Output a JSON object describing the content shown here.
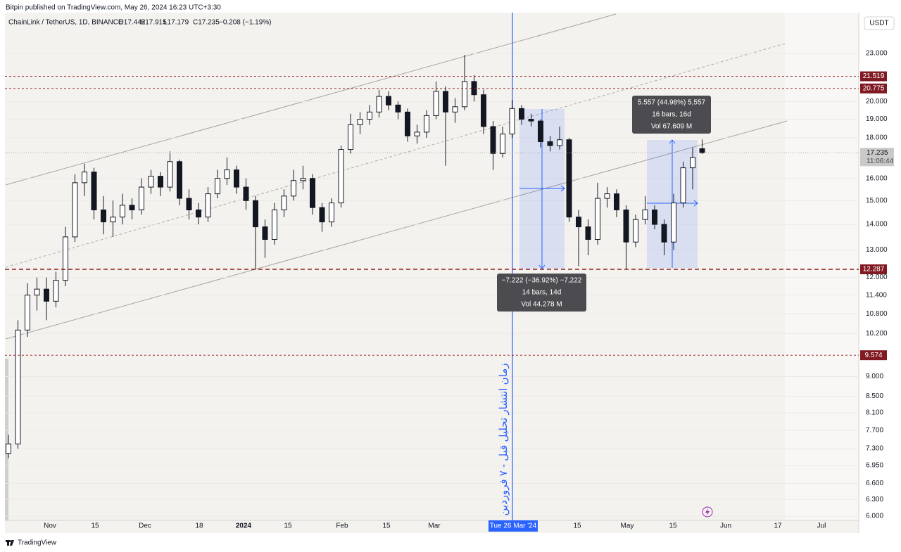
{
  "header": {
    "publisher": "Bitpin published on TradingView.com, May 26, 2024 16:23 UTC+3:30"
  },
  "legend": {
    "symbol": "ChainLink / TetherUS, 1D, BINANCE",
    "open": "O17.442",
    "high": "H17.915",
    "low": "L17.179",
    "close": "C17.235",
    "change": "−0.208 (−1.19%)"
  },
  "currency": "USDT",
  "price_axis": {
    "scale": "log",
    "range": [
      5.927,
      25.89
    ],
    "ticks": [
      {
        "value": 23,
        "label": "23.000"
      },
      {
        "value": 20,
        "label": "20.000"
      },
      {
        "value": 19,
        "label": "19.000"
      },
      {
        "value": 18,
        "label": "18.000"
      },
      {
        "value": 16,
        "label": "16.000"
      },
      {
        "value": 15,
        "label": "15.000"
      },
      {
        "value": 14,
        "label": "14.000"
      },
      {
        "value": 13,
        "label": "13.000"
      },
      {
        "value": 12,
        "label": "12.000"
      },
      {
        "value": 11.4,
        "label": "11.400"
      },
      {
        "value": 10.8,
        "label": "10.800"
      },
      {
        "value": 10.2,
        "label": "10.200"
      },
      {
        "value": 9,
        "label": "9.000"
      },
      {
        "value": 8.5,
        "label": "8.500"
      },
      {
        "value": 8.1,
        "label": "8.100"
      },
      {
        "value": 7.7,
        "label": "7.700"
      },
      {
        "value": 7.3,
        "label": "7.300"
      },
      {
        "value": 6.95,
        "label": "6.950"
      },
      {
        "value": 6.6,
        "label": "6.600"
      },
      {
        "value": 6.3,
        "label": "6.300"
      },
      {
        "value": 6,
        "label": "6.000"
      }
    ]
  },
  "time_axis": {
    "labels": [
      "Nov",
      "15",
      "Dec",
      "18",
      "2024",
      "15",
      "Feb",
      "15",
      "Mar",
      "15",
      "May",
      "15",
      "Jun",
      "17",
      "Jul"
    ],
    "crosshair_label": "Tue 26 Mar '24"
  },
  "price_lines": [
    21.519,
    20.775,
    12.287,
    9.574
  ],
  "current_price": {
    "value": 17.235,
    "countdown": "11:06:44"
  },
  "candles": [
    [
      7.2,
      7.6,
      7.1,
      7.4
    ],
    [
      7.4,
      10.6,
      7.3,
      10.3
    ],
    [
      10.3,
      11.8,
      10.1,
      11.4
    ],
    [
      11.4,
      12.0,
      10.9,
      11.6
    ],
    [
      11.6,
      12.0,
      10.6,
      11.2
    ],
    [
      11.2,
      12.2,
      11.0,
      11.9
    ],
    [
      11.9,
      13.9,
      11.7,
      13.5
    ],
    [
      13.5,
      16.2,
      13.3,
      15.8
    ],
    [
      15.8,
      16.7,
      15.2,
      16.3
    ],
    [
      16.3,
      16.5,
      14.2,
      14.6
    ],
    [
      14.6,
      15.2,
      13.6,
      14.1
    ],
    [
      14.1,
      15.0,
      13.5,
      14.3
    ],
    [
      14.3,
      15.3,
      14.0,
      14.8
    ],
    [
      14.8,
      15.1,
      14.2,
      14.6
    ],
    [
      14.6,
      16.0,
      14.4,
      15.6
    ],
    [
      15.6,
      16.4,
      15.3,
      16.1
    ],
    [
      16.1,
      16.3,
      15.2,
      15.6
    ],
    [
      15.6,
      17.3,
      15.4,
      16.8
    ],
    [
      16.8,
      16.9,
      14.8,
      15.1
    ],
    [
      15.1,
      15.5,
      14.2,
      14.6
    ],
    [
      14.6,
      14.9,
      14.0,
      14.3
    ],
    [
      14.3,
      15.6,
      14.1,
      15.3
    ],
    [
      15.3,
      16.4,
      15.1,
      16.0
    ],
    [
      16.0,
      17.0,
      15.7,
      16.4
    ],
    [
      16.4,
      16.6,
      15.3,
      15.6
    ],
    [
      15.6,
      16.0,
      14.6,
      15.0
    ],
    [
      15.0,
      15.2,
      12.3,
      13.9
    ],
    [
      13.9,
      14.2,
      12.7,
      13.4
    ],
    [
      13.4,
      14.9,
      13.2,
      14.6
    ],
    [
      14.6,
      15.5,
      14.3,
      15.2
    ],
    [
      15.2,
      16.4,
      15.0,
      15.9
    ],
    [
      15.9,
      16.6,
      15.5,
      16.0
    ],
    [
      16.0,
      16.2,
      14.4,
      14.7
    ],
    [
      14.7,
      14.9,
      13.7,
      14.1
    ],
    [
      14.1,
      15.1,
      13.9,
      14.9
    ],
    [
      14.9,
      17.6,
      14.7,
      17.4
    ],
    [
      17.4,
      19.3,
      17.2,
      18.7
    ],
    [
      18.7,
      19.4,
      18.2,
      19.0
    ],
    [
      19.0,
      19.8,
      18.7,
      19.4
    ],
    [
      19.4,
      20.7,
      19.1,
      20.3
    ],
    [
      20.3,
      20.6,
      19.5,
      19.8
    ],
    [
      19.8,
      20.0,
      19.0,
      19.4
    ],
    [
      19.4,
      19.6,
      17.8,
      18.1
    ],
    [
      18.1,
      18.7,
      17.7,
      18.3
    ],
    [
      18.3,
      19.5,
      18.0,
      19.2
    ],
    [
      19.2,
      21.2,
      19.0,
      20.6
    ],
    [
      20.6,
      20.9,
      16.6,
      19.4
    ],
    [
      19.4,
      20.2,
      18.8,
      19.7
    ],
    [
      19.7,
      22.9,
      19.5,
      21.2
    ],
    [
      21.2,
      21.6,
      20.0,
      20.4
    ],
    [
      20.4,
      20.7,
      18.2,
      18.6
    ],
    [
      18.6,
      18.9,
      16.4,
      17.2
    ],
    [
      17.2,
      18.6,
      17.0,
      18.2
    ],
    [
      18.2,
      20.1,
      18.0,
      19.6
    ],
    [
      19.6,
      19.8,
      18.7,
      19.0
    ],
    [
      19.0,
      19.3,
      18.6,
      18.9
    ],
    [
      18.9,
      19.0,
      17.5,
      17.8
    ],
    [
      17.8,
      18.1,
      17.3,
      17.6
    ],
    [
      17.6,
      18.6,
      17.4,
      17.9
    ],
    [
      17.9,
      18.0,
      14.1,
      14.3
    ],
    [
      14.3,
      14.6,
      12.4,
      13.9
    ],
    [
      13.9,
      14.2,
      12.8,
      13.4
    ],
    [
      13.4,
      15.8,
      13.2,
      15.1
    ],
    [
      15.1,
      15.6,
      14.7,
      15.3
    ],
    [
      15.3,
      15.5,
      14.3,
      14.6
    ],
    [
      14.6,
      14.8,
      12.3,
      13.3
    ],
    [
      13.3,
      14.4,
      13.1,
      14.2
    ],
    [
      14.2,
      15.2,
      14.0,
      14.6
    ],
    [
      14.6,
      14.8,
      13.8,
      14.0
    ],
    [
      14.0,
      14.2,
      12.8,
      13.3
    ],
    [
      13.3,
      15.3,
      13.0,
      14.9
    ],
    [
      14.9,
      16.8,
      14.7,
      16.5
    ],
    [
      16.5,
      17.5,
      15.5,
      17.0
    ],
    [
      17.442,
      17.915,
      17.179,
      17.235
    ]
  ],
  "measures": [
    {
      "lines": [
        "−7.222 (−36.92%) −7,222",
        "14 bars, 14d",
        "Vol 44.278 M"
      ]
    },
    {
      "lines": [
        "5.557 (44.98%) 5,557",
        "16 bars, 16d",
        "Vol 67.609 M"
      ]
    }
  ],
  "annotation": "زمان انتشار تحلیل قبل - ۷ فروردین",
  "footer": {
    "brand": "TradingView"
  }
}
